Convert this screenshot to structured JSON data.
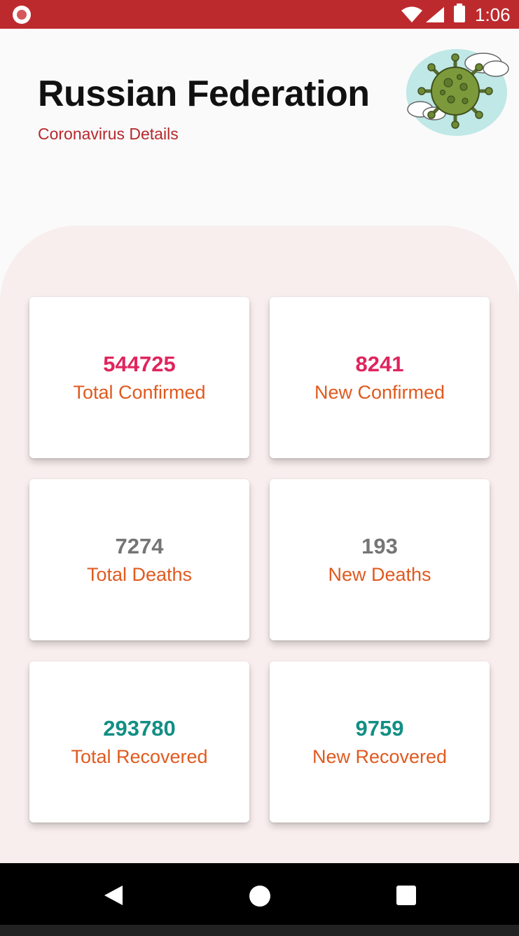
{
  "status_bar": {
    "time": "1:06"
  },
  "header": {
    "title": "Russian Federation",
    "subtitle": "Coronavirus Details"
  },
  "cards": [
    {
      "value": "544725",
      "label": "Total Confirmed",
      "value_color": "#e0245e"
    },
    {
      "value": "8241",
      "label": "New Confirmed",
      "value_color": "#e0245e"
    },
    {
      "value": "7274",
      "label": "Total Deaths",
      "value_color": "#757575"
    },
    {
      "value": "193",
      "label": "New Deaths",
      "value_color": "#757575"
    },
    {
      "value": "293780",
      "label": "Total Recovered",
      "value_color": "#128f84"
    },
    {
      "value": "9759",
      "label": "New Recovered",
      "value_color": "#128f84"
    }
  ],
  "colors": {
    "status_bar": "#bd2a2e",
    "subtitle": "#b7282c",
    "card_label": "#e05a1f",
    "panel": "#f9eeee"
  },
  "icons": [
    "virus-illustration",
    "recording-icon",
    "wifi-icon",
    "signal-icon",
    "battery-icon",
    "back-icon",
    "home-icon",
    "recents-icon"
  ]
}
